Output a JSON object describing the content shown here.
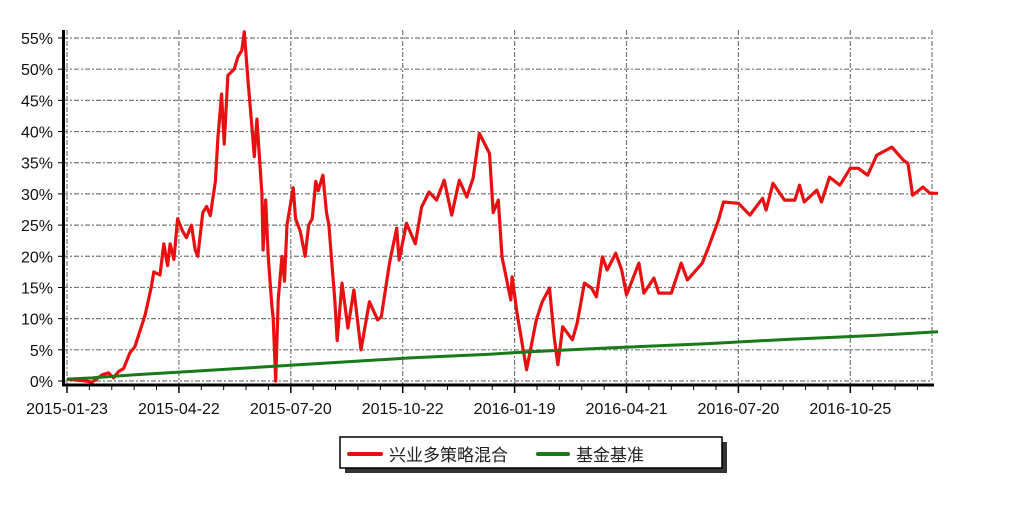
{
  "chart_data": {
    "type": "line",
    "title": "",
    "xlabel": "",
    "ylabel": "",
    "ylim": [
      0,
      55
    ],
    "y_ticks": [
      "0%",
      "5%",
      "10%",
      "15%",
      "20%",
      "25%",
      "30%",
      "35%",
      "40%",
      "45%",
      "50%",
      "55%"
    ],
    "y_tick_values": [
      0,
      5,
      10,
      15,
      20,
      25,
      30,
      35,
      40,
      45,
      50,
      55
    ],
    "x_ticks": [
      "2015-01-23",
      "2015-04-22",
      "2015-07-20",
      "2015-10-22",
      "2016-01-19",
      "2016-04-21",
      "2016-07-20",
      "2016-10-25"
    ],
    "grid": true,
    "legend_placement": "bottom-center",
    "series": [
      {
        "name": "兴业多策略混合",
        "color": "#e81010",
        "points": [
          [
            "2015-01-23",
            0.3
          ],
          [
            "2015-02-07",
            0
          ],
          [
            "2015-02-12",
            -0.2
          ],
          [
            "2015-02-20",
            1
          ],
          [
            "2015-02-25",
            1.3
          ],
          [
            "2015-03-01",
            0.5
          ],
          [
            "2015-03-05",
            1.5
          ],
          [
            "2015-03-09",
            2
          ],
          [
            "2015-03-14",
            4.5
          ],
          [
            "2015-03-18",
            5.5
          ],
          [
            "2015-03-22",
            8
          ],
          [
            "2015-03-26",
            10.5
          ],
          [
            "2015-03-31",
            15
          ],
          [
            "2015-04-02",
            17.5
          ],
          [
            "2015-04-07",
            17
          ],
          [
            "2015-04-10",
            22
          ],
          [
            "2015-04-13",
            18.5
          ],
          [
            "2015-04-15",
            22
          ],
          [
            "2015-04-18",
            19.5
          ],
          [
            "2015-04-21",
            26
          ],
          [
            "2015-04-25",
            24
          ],
          [
            "2015-04-28",
            23
          ],
          [
            "2015-05-02",
            25
          ],
          [
            "2015-05-05",
            21
          ],
          [
            "2015-05-07",
            20
          ],
          [
            "2015-05-11",
            27
          ],
          [
            "2015-05-14",
            28
          ],
          [
            "2015-05-17",
            26.5
          ],
          [
            "2015-05-21",
            32
          ],
          [
            "2015-05-23",
            39
          ],
          [
            "2015-05-26",
            46
          ],
          [
            "2015-05-28",
            38
          ],
          [
            "2015-05-31",
            49
          ],
          [
            "2015-06-05",
            50
          ],
          [
            "2015-06-08",
            52
          ],
          [
            "2015-06-11",
            53
          ],
          [
            "2015-06-13",
            56
          ],
          [
            "2015-06-16",
            48
          ],
          [
            "2015-06-19",
            41
          ],
          [
            "2015-06-21",
            36
          ],
          [
            "2015-06-23",
            42
          ],
          [
            "2015-06-27",
            30
          ],
          [
            "2015-06-28",
            21
          ],
          [
            "2015-06-30",
            29
          ],
          [
            "2015-07-02",
            20
          ],
          [
            "2015-07-05",
            12
          ],
          [
            "2015-07-06",
            10
          ],
          [
            "2015-07-08",
            0
          ],
          [
            "2015-07-10",
            13
          ],
          [
            "2015-07-13",
            20
          ],
          [
            "2015-07-15",
            16
          ],
          [
            "2015-07-17",
            25
          ],
          [
            "2015-07-22",
            31
          ],
          [
            "2015-07-24",
            26
          ],
          [
            "2015-07-28",
            24
          ],
          [
            "2015-08-01",
            20
          ],
          [
            "2015-08-04",
            25
          ],
          [
            "2015-08-07",
            26
          ],
          [
            "2015-08-10",
            32
          ],
          [
            "2015-08-12",
            30.5
          ],
          [
            "2015-08-16",
            33
          ],
          [
            "2015-08-19",
            27
          ],
          [
            "2015-08-21",
            25
          ],
          [
            "2015-08-23",
            20
          ],
          [
            "2015-08-26",
            13
          ],
          [
            "2015-08-28",
            6.5
          ],
          [
            "2015-09-01",
            15.7
          ],
          [
            "2015-09-06",
            8.5
          ],
          [
            "2015-09-11",
            14.6
          ],
          [
            "2015-09-17",
            5
          ],
          [
            "2015-09-24",
            12.7
          ],
          [
            "2015-10-01",
            9.8
          ],
          [
            "2015-10-04",
            10.3
          ],
          [
            "2015-10-11",
            19
          ],
          [
            "2015-10-17",
            24.5
          ],
          [
            "2015-10-19",
            19.4
          ],
          [
            "2015-10-25",
            25.3
          ],
          [
            "2015-11-01",
            22
          ],
          [
            "2015-11-06",
            27.9
          ],
          [
            "2015-11-12",
            30.3
          ],
          [
            "2015-11-18",
            29
          ],
          [
            "2015-11-24",
            32.2
          ],
          [
            "2015-11-30",
            26.6
          ],
          [
            "2015-12-06",
            32.2
          ],
          [
            "2015-12-12",
            29.5
          ],
          [
            "2015-12-17",
            32.5
          ],
          [
            "2015-12-22",
            39.7
          ],
          [
            "2015-12-30",
            36.5
          ],
          [
            "2016-01-02",
            27
          ],
          [
            "2016-01-06",
            29
          ],
          [
            "2016-01-09",
            19.9
          ],
          [
            "2016-01-16",
            13
          ],
          [
            "2016-01-17",
            16.7
          ],
          [
            "2016-01-21",
            10.9
          ],
          [
            "2016-01-29",
            1.8
          ],
          [
            "2016-02-06",
            9.8
          ],
          [
            "2016-02-11",
            12.7
          ],
          [
            "2016-02-17",
            14.9
          ],
          [
            "2016-02-21",
            6.9
          ],
          [
            "2016-02-24",
            2.6
          ],
          [
            "2016-02-28",
            8.7
          ],
          [
            "2016-03-07",
            6.6
          ],
          [
            "2016-03-11",
            9.3
          ],
          [
            "2016-03-17",
            15.7
          ],
          [
            "2016-03-23",
            14.9
          ],
          [
            "2016-03-27",
            13.5
          ],
          [
            "2016-04-01",
            19.9
          ],
          [
            "2016-04-05",
            17.8
          ],
          [
            "2016-04-12",
            20.5
          ],
          [
            "2016-04-17",
            17.8
          ],
          [
            "2016-04-21",
            13.8
          ],
          [
            "2016-05-01",
            18.9
          ],
          [
            "2016-05-05",
            14.1
          ],
          [
            "2016-05-13",
            16.5
          ],
          [
            "2016-05-17",
            14.1
          ],
          [
            "2016-05-27",
            14.1
          ],
          [
            "2016-06-04",
            18.9
          ],
          [
            "2016-06-09",
            16.2
          ],
          [
            "2016-06-21",
            18.9
          ],
          [
            "2016-06-26",
            21.5
          ],
          [
            "2016-07-04",
            25.8
          ],
          [
            "2016-07-08",
            28.7
          ],
          [
            "2016-07-20",
            28.5
          ],
          [
            "2016-07-30",
            26.6
          ],
          [
            "2016-08-10",
            29.3
          ],
          [
            "2016-08-13",
            27.4
          ],
          [
            "2016-08-19",
            31.7
          ],
          [
            "2016-08-29",
            29
          ],
          [
            "2016-09-07",
            29
          ],
          [
            "2016-09-11",
            31.4
          ],
          [
            "2016-09-15",
            28.7
          ],
          [
            "2016-09-26",
            30.6
          ],
          [
            "2016-09-30",
            28.7
          ],
          [
            "2016-10-07",
            32.7
          ],
          [
            "2016-10-16",
            31.4
          ],
          [
            "2016-10-25",
            34.1
          ],
          [
            "2016-11-01",
            34.1
          ],
          [
            "2016-11-09",
            33
          ],
          [
            "2016-11-17",
            36.2
          ],
          [
            "2016-11-30",
            37.5
          ],
          [
            "2016-12-10",
            35.4
          ],
          [
            "2016-12-14",
            34.9
          ],
          [
            "2016-12-18",
            29.8
          ],
          [
            "2016-12-27",
            31.1
          ],
          [
            "2017-01-02",
            30.1
          ],
          [
            "2017-01-09",
            30.1
          ]
        ]
      },
      {
        "name": "基金基准",
        "color": "#1a7a1a",
        "points": [
          [
            "2015-01-23",
            0.3
          ],
          [
            "2015-02-12",
            0.5
          ],
          [
            "2015-03-18",
            1.0
          ],
          [
            "2015-04-29",
            1.5
          ],
          [
            "2015-06-08",
            2.0
          ],
          [
            "2015-07-18",
            2.5
          ],
          [
            "2015-08-30",
            3.0
          ],
          [
            "2015-10-28",
            3.7
          ],
          [
            "2015-12-30",
            4.3
          ],
          [
            "2016-02-01",
            4.7
          ],
          [
            "2016-04-07",
            5.3
          ],
          [
            "2016-06-26",
            6.0
          ],
          [
            "2016-09-03",
            6.7
          ],
          [
            "2016-11-14",
            7.3
          ],
          [
            "2017-01-09",
            7.9
          ]
        ]
      }
    ]
  }
}
